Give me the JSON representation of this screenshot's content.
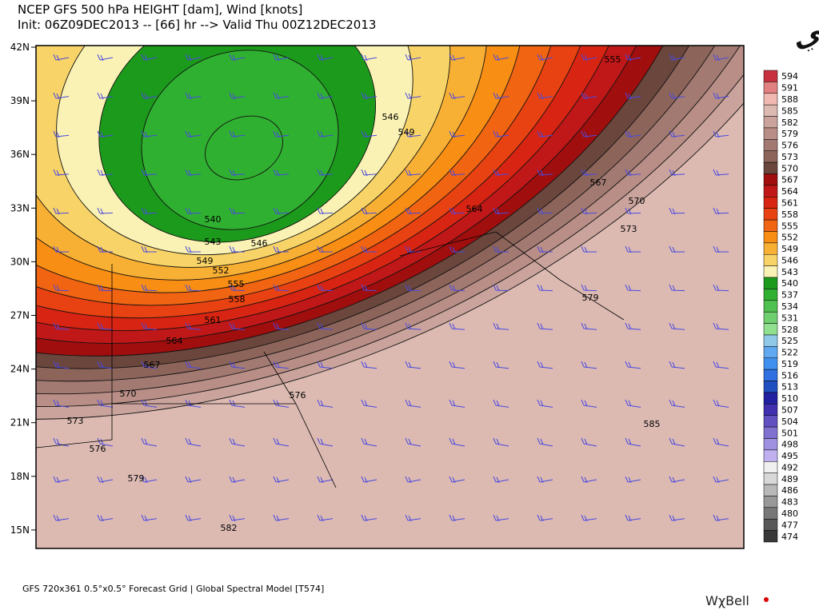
{
  "header": {
    "title": "NCEP GFS 500 hPa HEIGHT [dam], Wind [knots]",
    "subtitle": "Init: 06Z09DEC2013 -- [66] hr --> Valid Thu 00Z12DEC2013"
  },
  "watermark": "تركي الوايلي",
  "lat_labels": [
    "42N",
    "39N",
    "36N",
    "33N",
    "30N",
    "27N",
    "24N",
    "21N",
    "18N",
    "15N"
  ],
  "contour_labels": [
    "540",
    "543",
    "546",
    "549",
    "552",
    "555",
    "558",
    "561",
    "564",
    "567",
    "570",
    "573",
    "576",
    "579",
    "582",
    "576",
    "579",
    "573",
    "570",
    "567",
    "564",
    "555",
    "549",
    "546",
    "585"
  ],
  "legend": [
    {
      "value": 594,
      "color": "#c83040"
    },
    {
      "value": 591,
      "color": "#e08080"
    },
    {
      "value": 588,
      "color": "#f0b8b0"
    },
    {
      "value": 585,
      "color": "#dcbab2"
    },
    {
      "value": 582,
      "color": "#caa49c"
    },
    {
      "value": 579,
      "color": "#b88e86"
    },
    {
      "value": 576,
      "color": "#a27a72"
    },
    {
      "value": 573,
      "color": "#8c645a"
    },
    {
      "value": 570,
      "color": "#6a463c"
    },
    {
      "value": 567,
      "color": "#a00e0e"
    },
    {
      "value": 564,
      "color": "#c01818"
    },
    {
      "value": 561,
      "color": "#d82412"
    },
    {
      "value": 558,
      "color": "#e84212"
    },
    {
      "value": 555,
      "color": "#f06412"
    },
    {
      "value": 552,
      "color": "#f88e14"
    },
    {
      "value": 549,
      "color": "#f8b034"
    },
    {
      "value": 546,
      "color": "#f8d468"
    },
    {
      "value": 543,
      "color": "#faf2b4"
    },
    {
      "value": 540,
      "color": "#1c9a1c"
    },
    {
      "value": 537,
      "color": "#30b030"
    },
    {
      "value": 534,
      "color": "#50c050"
    },
    {
      "value": 531,
      "color": "#70d070"
    },
    {
      "value": 528,
      "color": "#90e090"
    },
    {
      "value": 525,
      "color": "#90c8e8"
    },
    {
      "value": 522,
      "color": "#60a8f0"
    },
    {
      "value": 519,
      "color": "#4090f0"
    },
    {
      "value": 516,
      "color": "#3070e0"
    },
    {
      "value": 513,
      "color": "#2050c0"
    },
    {
      "value": 510,
      "color": "#2020a0"
    },
    {
      "value": 507,
      "color": "#4030b0"
    },
    {
      "value": 504,
      "color": "#6050c0"
    },
    {
      "value": 501,
      "color": "#8070d0"
    },
    {
      "value": 498,
      "color": "#a090e0"
    },
    {
      "value": 495,
      "color": "#c0b0f0"
    },
    {
      "value": 492,
      "color": "#f0f0f0"
    },
    {
      "value": 489,
      "color": "#d8d8d8"
    },
    {
      "value": 486,
      "color": "#b8b8b8"
    },
    {
      "value": 483,
      "color": "#989898"
    },
    {
      "value": 480,
      "color": "#787878"
    },
    {
      "value": 477,
      "color": "#585858"
    },
    {
      "value": 474,
      "color": "#383838"
    }
  ],
  "footer": "GFS 720x361 0.5°x0.5° Forecast Grid | Global Spectral Model [T574]",
  "brand": "WχBell"
}
